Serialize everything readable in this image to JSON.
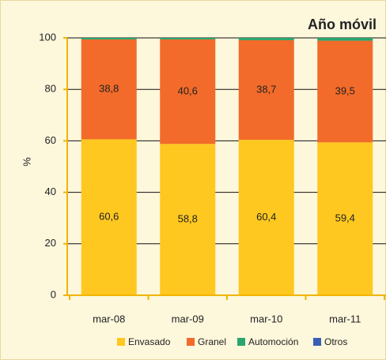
{
  "chart_data": {
    "type": "stacked_bar",
    "title": "Año móvil",
    "ylabel": "%",
    "categories": [
      "mar-08",
      "mar-09",
      "mar-10",
      "mar-11"
    ],
    "series": [
      {
        "name": "Envasado",
        "color": "#ffc820",
        "values": [
          60.6,
          58.8,
          60.4,
          59.4
        ],
        "value_labels": [
          "60,6",
          "58,8",
          "60,4",
          "59,4"
        ]
      },
      {
        "name": "Granel",
        "color": "#f26b2a",
        "values": [
          38.8,
          40.6,
          38.7,
          39.5
        ],
        "value_labels": [
          "38,8",
          "40,6",
          "38,7",
          "39,5"
        ]
      },
      {
        "name": "Automoción",
        "color": "#2aa56e",
        "values": [
          0.6,
          0.6,
          0.9,
          1.1
        ]
      },
      {
        "name": "Otros",
        "color": "#3a5fb4",
        "values": [
          0,
          0,
          0,
          0
        ]
      }
    ],
    "ylim": [
      0,
      100
    ],
    "yticks": [
      0,
      20,
      40,
      60,
      80,
      100
    ],
    "grid": true,
    "legend": "bottom"
  }
}
